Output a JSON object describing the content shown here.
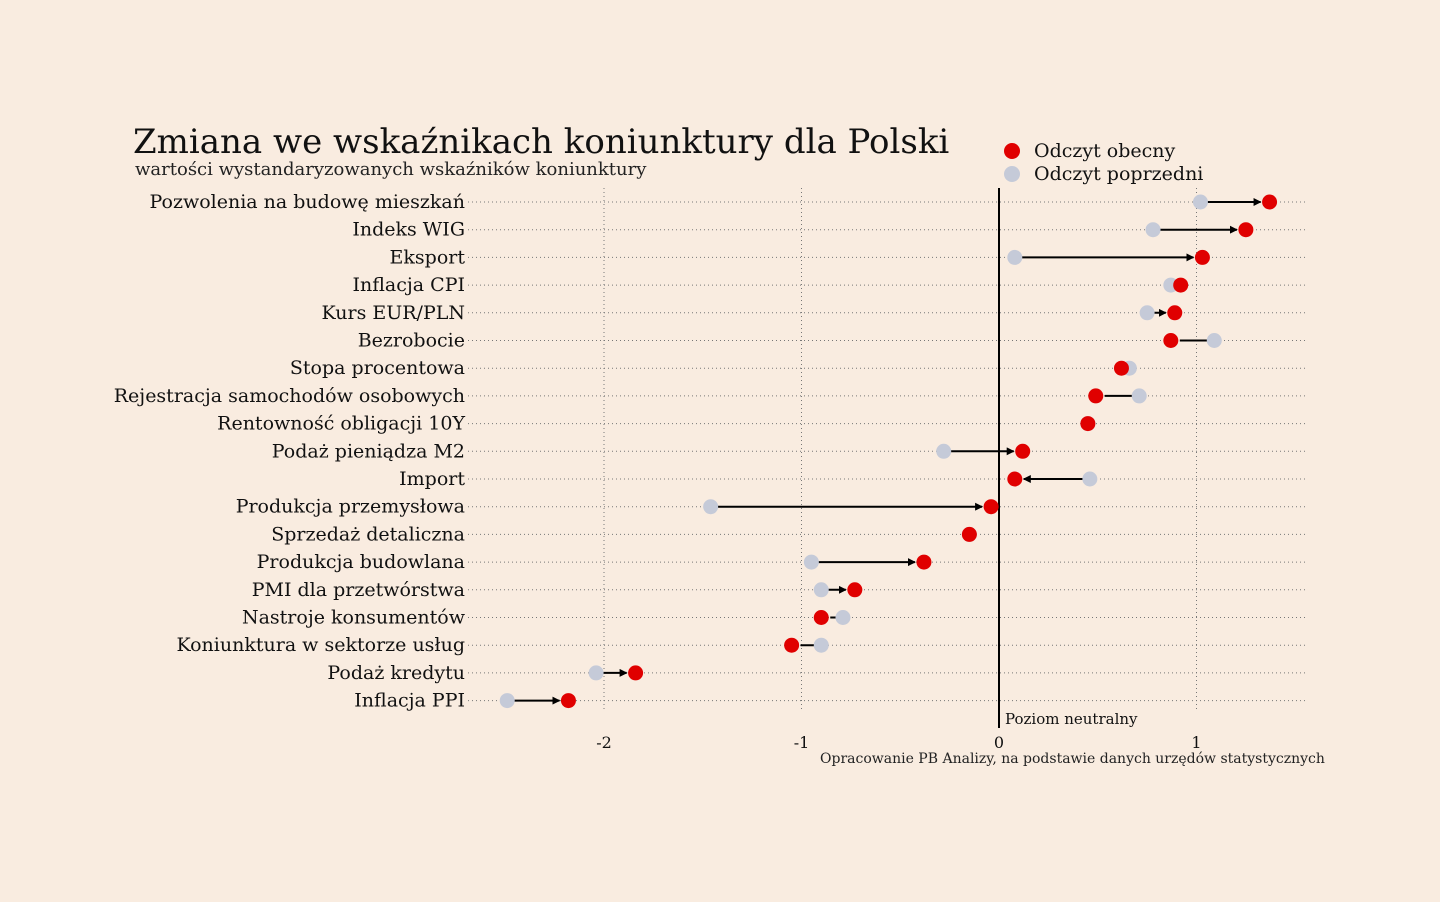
{
  "chart_data": {
    "type": "dumbbell",
    "title": "Zmiana we wskaźnikach koniunktury dla Polski",
    "subtitle": "wartości wystandaryzowanych wskaźników koniunktury",
    "legend": {
      "current": "Odczyt obecny",
      "previous": "Odczyt poprzedni",
      "placement": "top-right"
    },
    "colors": {
      "current": "#e00000",
      "previous": "#c5cad8",
      "background": "#f9ece0"
    },
    "xlim": [
      -2.5,
      1.5
    ],
    "xticks": [
      -2,
      -1,
      0,
      1
    ],
    "xtick_labels": [
      "-2",
      "-1",
      "0",
      "1"
    ],
    "neutral_label": "Poziom neutralny",
    "source": "Opracowanie PB Analizy, na podstawie danych urzędów statystycznych",
    "grid": true,
    "categories": [
      "Pozwolenia na budowę mieszkań",
      "Indeks WIG",
      "Eksport",
      "Inflacja CPI",
      "Kurs EUR/PLN",
      "Bezrobocie",
      "Stopa procentowa",
      "Rejestracja samochodów osobowych",
      "Rentowność obligacji 10Y",
      "Podaż pieniądza M2",
      "Import",
      "Produkcja przemysłowa",
      "Sprzedaż detaliczna",
      "Produkcja budowlana",
      "PMI dla przetwórstwa",
      "Nastroje konsumentów",
      "Koniunktura w sektorze usług",
      "Podaż kredytu",
      "Inflacja PPI"
    ],
    "series": [
      {
        "name": "Odczyt obecny",
        "values": [
          1.37,
          1.25,
          1.03,
          0.92,
          0.89,
          0.87,
          0.62,
          0.49,
          0.45,
          0.12,
          0.08,
          -0.04,
          -0.15,
          -0.38,
          -0.73,
          -0.9,
          -1.05,
          -1.84,
          -2.18
        ]
      },
      {
        "name": "Odczyt poprzedni",
        "values": [
          1.02,
          0.78,
          0.08,
          0.87,
          0.75,
          1.09,
          0.66,
          0.71,
          0.45,
          -0.28,
          0.46,
          -1.46,
          -0.15,
          -0.95,
          -0.9,
          -0.79,
          -0.9,
          -2.04,
          -2.49
        ]
      }
    ]
  }
}
